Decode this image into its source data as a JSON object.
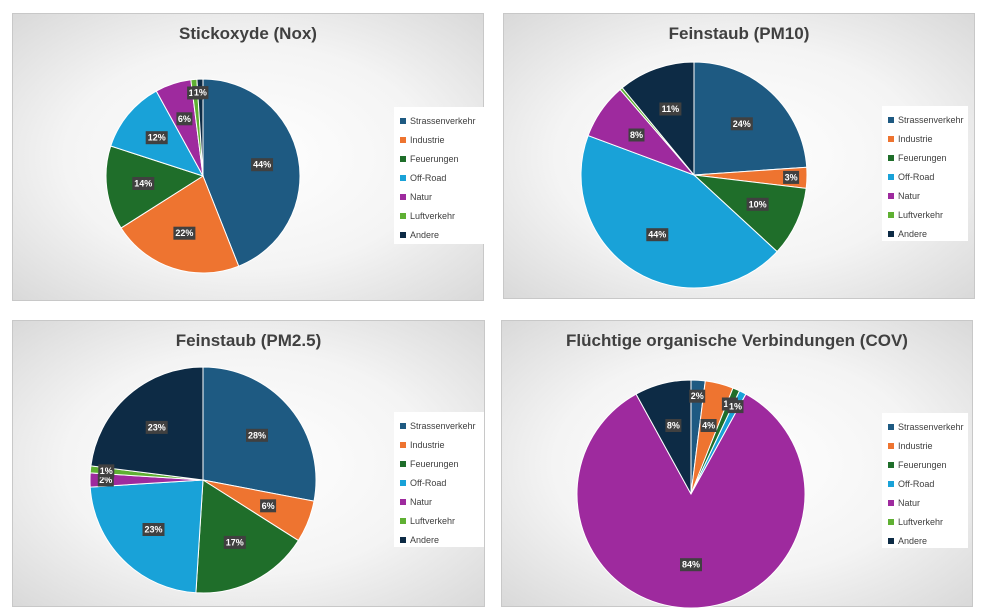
{
  "categories": [
    "Strassenverkehr",
    "Industrie",
    "Feuerungen",
    "Off-Road",
    "Natur",
    "Luftverkehr",
    "Andere"
  ],
  "colors": [
    "#1e5a82",
    "#ee7430",
    "#1f6e2a",
    "#19a2d8",
    "#9e2a9e",
    "#5fb033",
    "#0d2b45"
  ],
  "chart_data": [
    {
      "type": "pie",
      "title": "Stickoxyde (Nox)",
      "categories": [
        "Strassenverkehr",
        "Industrie",
        "Feuerungen",
        "Off-Road",
        "Natur",
        "Luftverkehr",
        "Andere"
      ],
      "values": [
        44,
        22,
        14,
        12,
        6,
        1,
        1
      ],
      "data_labels": [
        "44%",
        "22%",
        "14%",
        "12%",
        "6%",
        "1%",
        "1%"
      ],
      "legend": "right"
    },
    {
      "type": "pie",
      "title": "Feinstaub (PM10)",
      "categories": [
        "Strassenverkehr",
        "Industrie",
        "Feuerungen",
        "Off-Road",
        "Natur",
        "Luftverkehr",
        "Andere"
      ],
      "values": [
        24,
        3,
        10,
        44,
        8,
        0.4,
        11
      ],
      "data_labels": [
        "24%",
        "3%",
        "10%",
        "44%",
        "8%",
        "",
        "11%"
      ],
      "legend": "right"
    },
    {
      "type": "pie",
      "title": "Feinstaub (PM2.5)",
      "categories": [
        "Strassenverkehr",
        "Industrie",
        "Feuerungen",
        "Off-Road",
        "Natur",
        "Luftverkehr",
        "Andere"
      ],
      "values": [
        28,
        6,
        17,
        23,
        2,
        1,
        23
      ],
      "data_labels": [
        "28%",
        "6%",
        "17%",
        "23%",
        "2%",
        "1%",
        "23%"
      ],
      "legend": "right"
    },
    {
      "type": "pie",
      "title": "Flüchtige organische Verbindungen (COV)",
      "categories": [
        "Strassenverkehr",
        "Industrie",
        "Feuerungen",
        "Off-Road",
        "Natur",
        "Luftverkehr",
        "Andere"
      ],
      "values": [
        2,
        4,
        1,
        1,
        84,
        0,
        8
      ],
      "data_labels": [
        "2%",
        "4%",
        "1%",
        "1%",
        "84%",
        "",
        "8%"
      ],
      "legend": "right"
    }
  ]
}
